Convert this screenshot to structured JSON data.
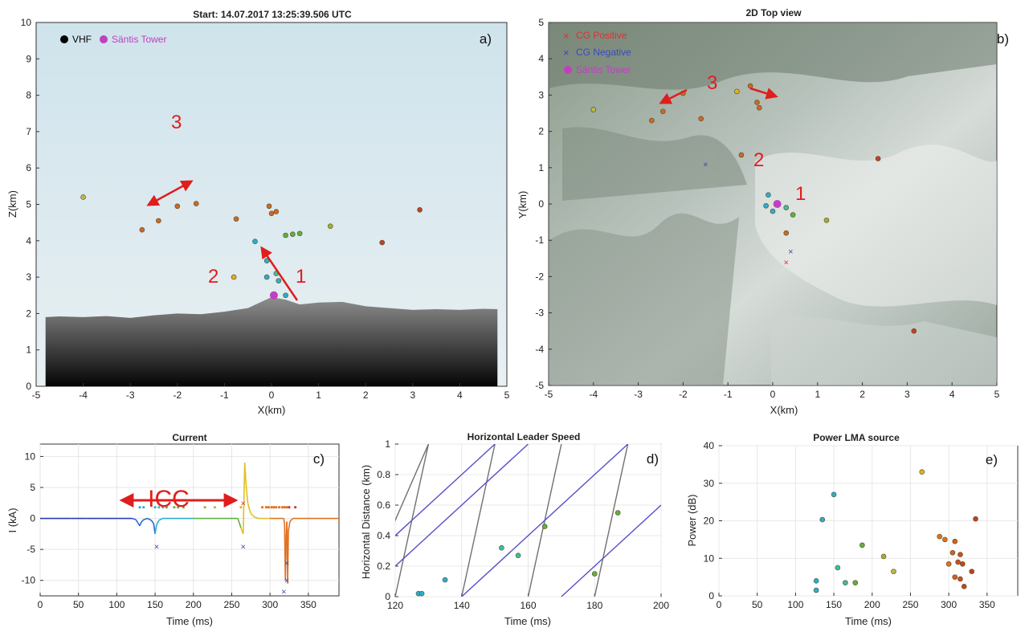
{
  "chart_data": [
    {
      "id": "a",
      "type": "scatter",
      "title": "Start: 14.07.2017 13:25:39.506 UTC",
      "panel_label": "a)",
      "xlabel": "X(km)",
      "ylabel": "Z(km)",
      "xlim": [
        -5,
        5
      ],
      "ylim": [
        0,
        10
      ],
      "xticks": [
        "-5",
        "-4",
        "-3",
        "-2",
        "-1",
        "0",
        "1",
        "2",
        "3",
        "4",
        "5"
      ],
      "yticks": [
        "0",
        "1",
        "2",
        "3",
        "4",
        "5",
        "6",
        "7",
        "8",
        "9",
        "10"
      ],
      "legend": [
        {
          "label": "VHF",
          "color": "#000000"
        },
        {
          "label": "Säntis Tower",
          "color": "#c040c0"
        }
      ],
      "annotations": [
        "3",
        "2",
        "1"
      ],
      "terrain_profile": [
        [
          -4.8,
          1.9
        ],
        [
          -4.5,
          1.92
        ],
        [
          -4,
          1.9
        ],
        [
          -3.5,
          1.93
        ],
        [
          -3,
          1.88
        ],
        [
          -2.5,
          1.95
        ],
        [
          -2,
          2.0
        ],
        [
          -1.5,
          1.98
        ],
        [
          -1,
          2.05
        ],
        [
          -0.5,
          2.15
        ],
        [
          0,
          2.45
        ],
        [
          0.3,
          2.38
        ],
        [
          0.6,
          2.25
        ],
        [
          1,
          2.3
        ],
        [
          1.5,
          2.32
        ],
        [
          2,
          2.2
        ],
        [
          2.5,
          2.15
        ],
        [
          3,
          2.1
        ],
        [
          3.5,
          2.12
        ],
        [
          4,
          2.1
        ],
        [
          4.5,
          2.13
        ],
        [
          4.8,
          2.12
        ]
      ],
      "points": [
        {
          "x": -4.0,
          "y": 5.2,
          "c": "#b8b84a"
        },
        {
          "x": -2.75,
          "y": 4.3,
          "c": "#c86a2a"
        },
        {
          "x": -2.4,
          "y": 4.55,
          "c": "#c86a2a"
        },
        {
          "x": -2.0,
          "y": 4.95,
          "c": "#c86a2a"
        },
        {
          "x": -1.6,
          "y": 5.02,
          "c": "#c86a2a"
        },
        {
          "x": -0.75,
          "y": 4.6,
          "c": "#c86a2a"
        },
        {
          "x": -0.8,
          "y": 3.0,
          "c": "#e0b020"
        },
        {
          "x": -0.35,
          "y": 3.98,
          "c": "#2aaed0"
        },
        {
          "x": -0.1,
          "y": 3.45,
          "c": "#2aaed0"
        },
        {
          "x": -0.1,
          "y": 3.0,
          "c": "#2aaed0"
        },
        {
          "x": 0.0,
          "y": 4.75,
          "c": "#c86a2a"
        },
        {
          "x": -0.05,
          "y": 4.95,
          "c": "#c86a2a"
        },
        {
          "x": 0.1,
          "y": 4.8,
          "c": "#c86a2a"
        },
        {
          "x": 0.15,
          "y": 2.9,
          "c": "#2aaed0"
        },
        {
          "x": 0.1,
          "y": 3.1,
          "c": "#3cbfa0"
        },
        {
          "x": 0.3,
          "y": 4.15,
          "c": "#60b040"
        },
        {
          "x": 0.45,
          "y": 4.18,
          "c": "#60b040"
        },
        {
          "x": 0.6,
          "y": 4.2,
          "c": "#60b040"
        },
        {
          "x": 0.3,
          "y": 2.5,
          "c": "#2aaed0"
        },
        {
          "x": 1.25,
          "y": 4.4,
          "c": "#a0b030"
        },
        {
          "x": 2.35,
          "y": 3.95,
          "c": "#c0402a"
        },
        {
          "x": 3.15,
          "y": 4.85,
          "c": "#c0402a"
        }
      ],
      "tower": {
        "x": 0.05,
        "y": 2.5
      }
    },
    {
      "id": "b",
      "type": "scatter",
      "title": "2D Top view",
      "panel_label": "b)",
      "xlabel": "X(km)",
      "ylabel": "Y(km)",
      "xlim": [
        -5,
        5
      ],
      "ylim": [
        -5,
        5
      ],
      "xticks": [
        "-5",
        "-4",
        "-3",
        "-2",
        "-1",
        "0",
        "1",
        "2",
        "3",
        "4",
        "5"
      ],
      "yticks": [
        "-5",
        "-4",
        "-3",
        "-2",
        "-1",
        "0",
        "1",
        "2",
        "3",
        "4",
        "5"
      ],
      "legend": [
        {
          "label": "CG Positive",
          "color": "#e03030",
          "marker": "×"
        },
        {
          "label": "CG Negative",
          "color": "#3a4ac0",
          "marker": "×"
        },
        {
          "label": "Säntis Tower",
          "color": "#c040c0",
          "marker": "●"
        }
      ],
      "annotations": [
        "3",
        "2",
        "1"
      ],
      "points": [
        {
          "x": -4.0,
          "y": 2.6,
          "c": "#b8b84a"
        },
        {
          "x": -2.7,
          "y": 2.3,
          "c": "#c86a2a"
        },
        {
          "x": -2.45,
          "y": 2.55,
          "c": "#c86a2a"
        },
        {
          "x": -2.0,
          "y": 3.05,
          "c": "#c86a2a"
        },
        {
          "x": -1.6,
          "y": 2.35,
          "c": "#c86a2a"
        },
        {
          "x": -0.8,
          "y": 3.1,
          "c": "#e0b020"
        },
        {
          "x": -0.7,
          "y": 1.35,
          "c": "#c86a2a"
        },
        {
          "x": -0.5,
          "y": 3.25,
          "c": "#c86a2a"
        },
        {
          "x": -0.35,
          "y": 2.8,
          "c": "#c86a2a"
        },
        {
          "x": -0.3,
          "y": 2.65,
          "c": "#c86a2a"
        },
        {
          "x": -0.1,
          "y": 0.25,
          "c": "#2aaed0"
        },
        {
          "x": -0.15,
          "y": -0.05,
          "c": "#2aaed0"
        },
        {
          "x": 0.0,
          "y": -0.2,
          "c": "#2aaed0"
        },
        {
          "x": 0.3,
          "y": -0.1,
          "c": "#3cbfa0"
        },
        {
          "x": 0.45,
          "y": -0.3,
          "c": "#60b040"
        },
        {
          "x": 1.2,
          "y": -0.45,
          "c": "#a0b030"
        },
        {
          "x": 0.3,
          "y": -0.8,
          "c": "#c86a2a"
        },
        {
          "x": 2.35,
          "y": 1.25,
          "c": "#c0402a"
        },
        {
          "x": 3.15,
          "y": -3.5,
          "c": "#c0402a"
        }
      ],
      "cg_positive": [
        {
          "x": 0.3,
          "y": -1.6
        }
      ],
      "cg_negative": [
        {
          "x": -1.5,
          "y": 1.1
        },
        {
          "x": 0.4,
          "y": -1.3
        }
      ],
      "tower": {
        "x": 0.1,
        "y": 0.0
      }
    },
    {
      "id": "c",
      "type": "line",
      "title": "Current",
      "panel_label": "c)",
      "xlabel": "Time (ms)",
      "ylabel": "I (kA)",
      "xlim": [
        0,
        390
      ],
      "ylim": [
        -12.5,
        12
      ],
      "xticks": [
        "0",
        "50",
        "100",
        "150",
        "200",
        "250",
        "300",
        "350"
      ],
      "yticks": [
        "-10",
        "-5",
        "0",
        "5",
        "10"
      ],
      "annotation": "ICC",
      "series": [
        {
          "x": [
            0,
            20,
            40,
            60,
            80,
            100,
            110,
            120,
            125,
            128,
            130,
            132,
            135,
            140,
            145,
            148,
            150,
            152,
            155,
            160,
            170,
            180,
            190,
            200,
            210,
            220,
            230,
            240,
            250,
            258,
            262,
            265,
            267,
            269,
            271,
            273,
            275,
            278,
            280,
            285,
            290,
            295,
            300,
            305,
            310,
            315,
            318,
            319,
            320,
            321,
            322,
            323,
            324,
            326,
            328,
            330,
            340,
            350,
            360,
            370,
            380,
            390
          ],
          "values": [
            0,
            0,
            0,
            0,
            0,
            0,
            0,
            0,
            -0.2,
            -0.8,
            -1.2,
            -0.6,
            -0.2,
            0,
            -0.3,
            -0.8,
            -2.5,
            -1.0,
            -0.3,
            0,
            0,
            0,
            0,
            0,
            0,
            0,
            0,
            0,
            0,
            0,
            -1.5,
            -2.5,
            9.0,
            5.0,
            2.5,
            1.5,
            0.8,
            0.4,
            0.2,
            0,
            0,
            0,
            0,
            0,
            0,
            0,
            0,
            -1,
            -10,
            -3,
            -0.5,
            -10.5,
            -2,
            -0.5,
            -0.2,
            0,
            0,
            0,
            0,
            0,
            0,
            0
          ]
        }
      ],
      "markers_top": [
        {
          "x": 130,
          "c": "#2aaed0"
        },
        {
          "x": 135,
          "c": "#2aaed0"
        },
        {
          "x": 150,
          "c": "#2aaed0"
        },
        {
          "x": 155,
          "c": "#3cbfa0"
        },
        {
          "x": 160,
          "c": "#3cbfa0"
        },
        {
          "x": 165,
          "c": "#60b040"
        },
        {
          "x": 175,
          "c": "#60b040"
        },
        {
          "x": 180,
          "c": "#60b040"
        },
        {
          "x": 187,
          "c": "#60b040"
        },
        {
          "x": 215,
          "c": "#a0b030"
        },
        {
          "x": 228,
          "c": "#b8b84a"
        },
        {
          "x": 262,
          "c": "#e0b020"
        },
        {
          "x": 290,
          "c": "#e07020"
        },
        {
          "x": 295,
          "c": "#e07020"
        },
        {
          "x": 298,
          "c": "#e07020"
        },
        {
          "x": 302,
          "c": "#e07020"
        },
        {
          "x": 305,
          "c": "#e07020"
        },
        {
          "x": 308,
          "c": "#e07020"
        },
        {
          "x": 312,
          "c": "#e07020"
        },
        {
          "x": 316,
          "c": "#e07020"
        },
        {
          "x": 319,
          "c": "#e07020"
        },
        {
          "x": 322,
          "c": "#e07020"
        },
        {
          "x": 325,
          "c": "#c0402a"
        },
        {
          "x": 333,
          "c": "#c0402a"
        }
      ],
      "cg_marks": [
        {
          "x": 152,
          "y": -4.5,
          "c": "#3a4ac0"
        },
        {
          "x": 265,
          "y": 2.5,
          "c": "#e03030"
        },
        {
          "x": 265,
          "y": -4.5,
          "c": "#3a4ac0"
        },
        {
          "x": 318,
          "y": -11.8,
          "c": "#3a4ac0"
        },
        {
          "x": 322,
          "y": -10,
          "c": "#3a4ac0"
        },
        {
          "x": 322,
          "y": -7.2,
          "c": "#3a4ac0"
        }
      ]
    },
    {
      "id": "d",
      "type": "line",
      "title": "Horizontal Leader Speed",
      "panel_label": "d)",
      "xlabel": "Time (ms)",
      "ylabel": "Horizontal Distance (km)",
      "xlim": [
        120,
        200
      ],
      "ylim": [
        0,
        1
      ],
      "xticks": [
        "120",
        "140",
        "160",
        "180",
        "200"
      ],
      "yticks": [
        "0",
        "0.2",
        "0.4",
        "0.6",
        "0.8",
        "1"
      ],
      "guide_lines": [
        {
          "x1": 110,
          "y1": 0.0,
          "x2": 130,
          "y2": 1.0,
          "c": "#707070"
        },
        {
          "x1": 120,
          "y1": 0.0,
          "x2": 130,
          "y2": 1.0,
          "c": "#707070"
        },
        {
          "x1": 140,
          "y1": 0.0,
          "x2": 150,
          "y2": 1.0,
          "c": "#707070"
        },
        {
          "x1": 160,
          "y1": 0.0,
          "x2": 170,
          "y2": 1.0,
          "c": "#707070"
        },
        {
          "x1": 180,
          "y1": 0.0,
          "x2": 190,
          "y2": 1.0,
          "c": "#707070"
        },
        {
          "x1": 100,
          "y1": 0.0,
          "x2": 150,
          "y2": 1.0,
          "c": "#5550c8"
        },
        {
          "x1": 120,
          "y1": 0.2,
          "x2": 160,
          "y2": 1.0,
          "c": "#5550c8"
        },
        {
          "x1": 140,
          "y1": 0.0,
          "x2": 190,
          "y2": 1.0,
          "c": "#5550c8"
        },
        {
          "x1": 170,
          "y1": 0.0,
          "x2": 200,
          "y2": 0.6,
          "c": "#5550c8"
        }
      ],
      "points": [
        {
          "x": 127,
          "y": 0.02,
          "c": "#2aaed0"
        },
        {
          "x": 128,
          "y": 0.02,
          "c": "#2aaed0"
        },
        {
          "x": 135,
          "y": 0.11,
          "c": "#2aaed0"
        },
        {
          "x": 152,
          "y": 0.32,
          "c": "#3cbfa0"
        },
        {
          "x": 157,
          "y": 0.27,
          "c": "#3cbfa0"
        },
        {
          "x": 165,
          "y": 0.46,
          "c": "#60b040"
        },
        {
          "x": 180,
          "y": 0.15,
          "c": "#60b040"
        },
        {
          "x": 187,
          "y": 0.55,
          "c": "#60b040"
        }
      ]
    },
    {
      "id": "e",
      "type": "scatter",
      "title": "Power LMA source",
      "panel_label": "e)",
      "xlabel": "Time (ms)",
      "ylabel": "Power (dB)",
      "xlim": [
        0,
        390
      ],
      "ylim": [
        0,
        40
      ],
      "xticks": [
        "0",
        "50",
        "100",
        "150",
        "200",
        "250",
        "300",
        "350"
      ],
      "yticks": [
        "0",
        "10",
        "20",
        "30",
        "40"
      ],
      "points": [
        {
          "x": 127,
          "y": 1.5,
          "c": "#2aaed0"
        },
        {
          "x": 127,
          "y": 4,
          "c": "#2aaed0"
        },
        {
          "x": 135,
          "y": 20.3,
          "c": "#2aaed0"
        },
        {
          "x": 150,
          "y": 27,
          "c": "#2aaed0"
        },
        {
          "x": 155,
          "y": 7.5,
          "c": "#3cbfa0"
        },
        {
          "x": 165,
          "y": 3.5,
          "c": "#3cbfa0"
        },
        {
          "x": 178,
          "y": 3.5,
          "c": "#60b040"
        },
        {
          "x": 187,
          "y": 13.5,
          "c": "#60b040"
        },
        {
          "x": 215,
          "y": 10.5,
          "c": "#a0b030"
        },
        {
          "x": 228,
          "y": 6.5,
          "c": "#b8b84a"
        },
        {
          "x": 265,
          "y": 33,
          "c": "#e0b020"
        },
        {
          "x": 288,
          "y": 15.8,
          "c": "#e07020"
        },
        {
          "x": 295,
          "y": 15,
          "c": "#e07020"
        },
        {
          "x": 300,
          "y": 8.5,
          "c": "#e07020"
        },
        {
          "x": 305,
          "y": 11.5,
          "c": "#d06020"
        },
        {
          "x": 308,
          "y": 14.5,
          "c": "#d06020"
        },
        {
          "x": 308,
          "y": 5,
          "c": "#d06020"
        },
        {
          "x": 312,
          "y": 9,
          "c": "#c85020"
        },
        {
          "x": 315,
          "y": 4.5,
          "c": "#c85020"
        },
        {
          "x": 315,
          "y": 11,
          "c": "#c85020"
        },
        {
          "x": 318,
          "y": 8.5,
          "c": "#c04a20"
        },
        {
          "x": 320,
          "y": 2.5,
          "c": "#c04a20"
        },
        {
          "x": 330,
          "y": 6.5,
          "c": "#c0402a"
        },
        {
          "x": 335,
          "y": 20.5,
          "c": "#c0402a"
        }
      ]
    }
  ]
}
